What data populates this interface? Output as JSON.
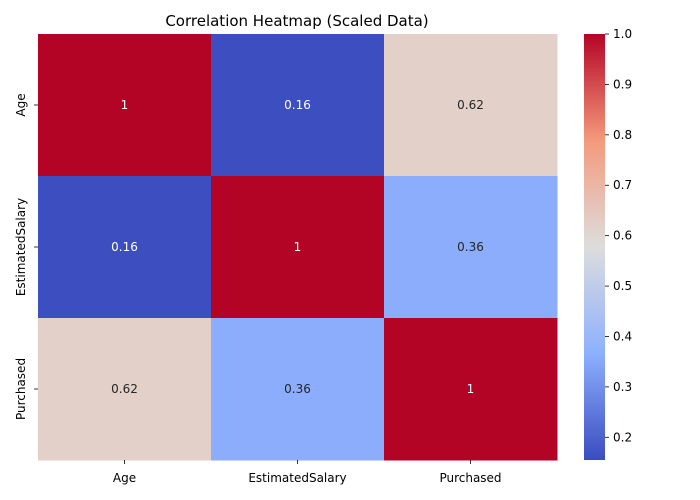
{
  "chart_data": {
    "type": "heatmap",
    "title": "Correlation Heatmap (Scaled Data)",
    "xlabel": "",
    "ylabel": "",
    "x_categories": [
      "Age",
      "EstimatedSalary",
      "Purchased"
    ],
    "y_categories": [
      "Age",
      "EstimatedSalary",
      "Purchased"
    ],
    "matrix": [
      [
        1,
        0.16,
        0.62
      ],
      [
        0.16,
        1,
        0.36
      ],
      [
        0.62,
        0.36,
        1
      ]
    ],
    "cell_labels": [
      [
        "1",
        "0.16",
        "0.62"
      ],
      [
        "0.16",
        "1",
        "0.36"
      ],
      [
        "0.62",
        "0.36",
        "1"
      ]
    ],
    "colormap": "coolwarm",
    "colorbar": {
      "range": [
        0.155,
        1.0
      ],
      "ticks": [
        0.2,
        0.3,
        0.4,
        0.5,
        0.6,
        0.7,
        0.8,
        0.9,
        1.0
      ],
      "tick_labels": [
        "0.2",
        "0.3",
        "0.4",
        "0.5",
        "0.6",
        "0.7",
        "0.8",
        "0.9",
        "1.0"
      ]
    },
    "grid": false,
    "legend": "colorbar-right"
  }
}
